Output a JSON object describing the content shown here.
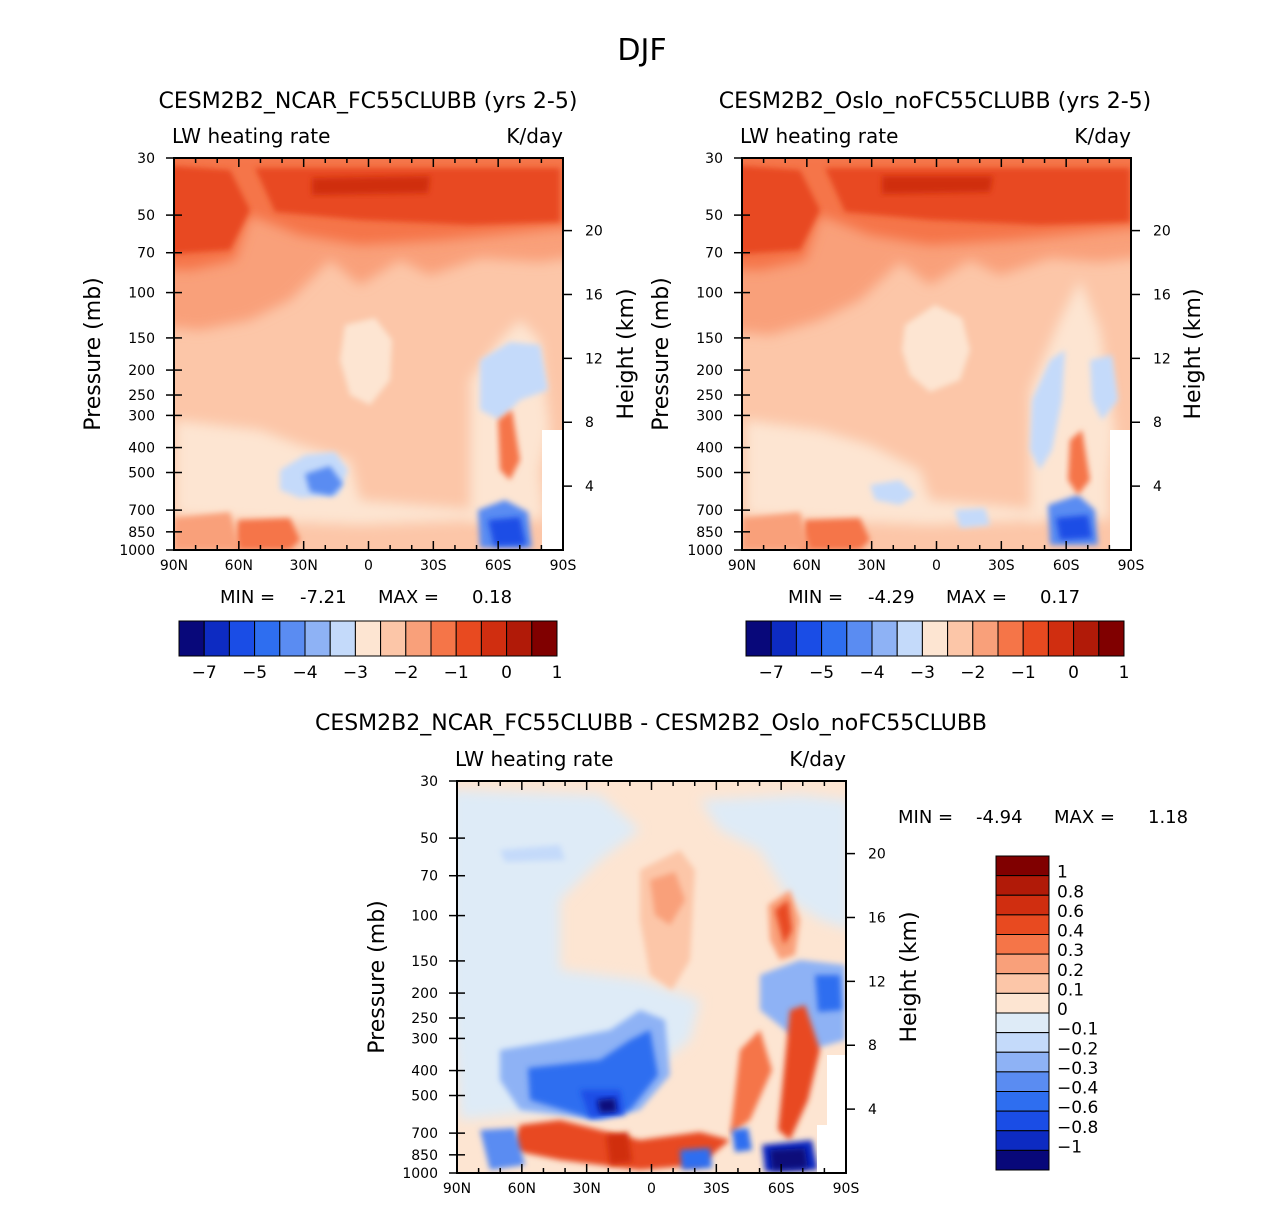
{
  "figure_title": "DJF",
  "chart_data": [
    {
      "type": "heatmap",
      "title": "CESM2B2_NCAR_FC55CLUBB (yrs 2-5)",
      "left_label": "LW heating rate",
      "right_label": "K/day",
      "xlabel": "",
      "ylabel": "Pressure (mb)",
      "ylabel_right": "Height (km)",
      "x_ticks": [
        "90N",
        "60N",
        "30N",
        "0",
        "30S",
        "60S",
        "90S"
      ],
      "x_range": [
        90,
        -90
      ],
      "y_ticks": [
        30,
        50,
        70,
        100,
        150,
        200,
        250,
        300,
        400,
        500,
        700,
        850,
        1000
      ],
      "y_range": [
        30,
        1000
      ],
      "height_ticks": [
        20,
        16,
        12,
        8,
        4
      ],
      "stats": {
        "min_label": "MIN =",
        "min": "-7.21",
        "max_label": "MAX =",
        "max": "0.18"
      },
      "levels": [
        "-7",
        "-5",
        "-4",
        "-3",
        "-2",
        "-1",
        "0",
        "1"
      ],
      "colors": [
        "#08087a",
        "#0d2bc2",
        "#1a4de6",
        "#2e6ef0",
        "#5a8cf2",
        "#8eb2f5",
        "#c4dafa",
        "#fde5d2",
        "#fcc6a8",
        "#f9a07a",
        "#f57548",
        "#e84a20",
        "#d02e10",
        "#b11a08",
        "#800000"
      ]
    },
    {
      "type": "heatmap",
      "title": "CESM2B2_Oslo_noFC55CLUBB (yrs 2-5)",
      "left_label": "LW heating rate",
      "right_label": "K/day",
      "xlabel": "",
      "ylabel": "Pressure (mb)",
      "ylabel_right": "Height (km)",
      "x_ticks": [
        "90N",
        "60N",
        "30N",
        "0",
        "30S",
        "60S",
        "90S"
      ],
      "x_range": [
        90,
        -90
      ],
      "y_ticks": [
        30,
        50,
        70,
        100,
        150,
        200,
        250,
        300,
        400,
        500,
        700,
        850,
        1000
      ],
      "y_range": [
        30,
        1000
      ],
      "height_ticks": [
        20,
        16,
        12,
        8,
        4
      ],
      "stats": {
        "min_label": "MIN =",
        "min": "-4.29",
        "max_label": "MAX =",
        "max": "0.17"
      },
      "levels": [
        "-7",
        "-5",
        "-4",
        "-3",
        "-2",
        "-1",
        "0",
        "1"
      ],
      "colors": [
        "#08087a",
        "#0d2bc2",
        "#1a4de6",
        "#2e6ef0",
        "#5a8cf2",
        "#8eb2f5",
        "#c4dafa",
        "#fde5d2",
        "#fcc6a8",
        "#f9a07a",
        "#f57548",
        "#e84a20",
        "#d02e10",
        "#b11a08",
        "#800000"
      ]
    },
    {
      "type": "heatmap",
      "title": "CESM2B2_NCAR_FC55CLUBB - CESM2B2_Oslo_noFC55CLUBB",
      "left_label": "LW heating rate",
      "right_label": "K/day",
      "xlabel": "",
      "ylabel": "Pressure (mb)",
      "ylabel_right": "Height (km)",
      "x_ticks": [
        "90N",
        "60N",
        "30N",
        "0",
        "30S",
        "60S",
        "90S"
      ],
      "x_range": [
        90,
        -90
      ],
      "y_ticks": [
        30,
        50,
        70,
        100,
        150,
        200,
        250,
        300,
        400,
        500,
        700,
        850,
        1000
      ],
      "y_range": [
        30,
        1000
      ],
      "height_ticks": [
        20,
        16,
        12,
        8,
        4
      ],
      "stats": {
        "min_label": "MIN =",
        "min": "-4.94",
        "max_label": "MAX =",
        "max": "1.18"
      },
      "levels": [
        "1",
        "0.8",
        "0.6",
        "0.4",
        "0.3",
        "0.2",
        "0.1",
        "0",
        "-0.1",
        "-0.2",
        "-0.3",
        "-0.4",
        "-0.6",
        "-0.8",
        "-1"
      ],
      "colors": [
        "#800000",
        "#b11a08",
        "#d02e10",
        "#e84a20",
        "#f57548",
        "#f9a07a",
        "#fcc6a8",
        "#fde5d2",
        "#deebf7",
        "#c4dafa",
        "#8eb2f5",
        "#5a8cf2",
        "#2e6ef0",
        "#1a4de6",
        "#0d2bc2",
        "#08087a"
      ]
    }
  ]
}
